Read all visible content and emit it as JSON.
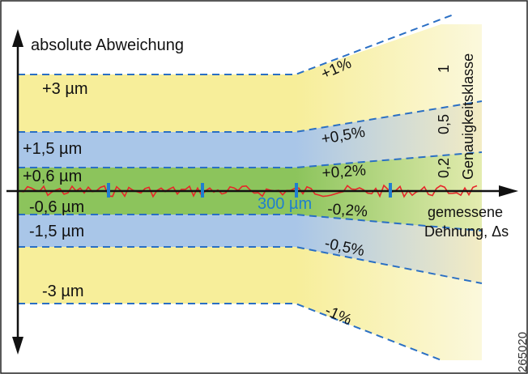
{
  "axes": {
    "y_label": "absolute Abweichung",
    "x_label_line1": "gemessene",
    "x_label_line2": "Dehnung, Δs",
    "tick_label": "300 µm"
  },
  "bands_left": [
    {
      "label": "+3 µm"
    },
    {
      "label": "+1,5 µm"
    },
    {
      "label": "+0,6 µm"
    },
    {
      "label": "-0,6 µm"
    },
    {
      "label": "-1,5 µm"
    },
    {
      "label": "-3 µm"
    }
  ],
  "bands_right": [
    {
      "label": "+1%"
    },
    {
      "label": "+0,5%"
    },
    {
      "label": "+0,2%"
    },
    {
      "label": "-0,2%"
    },
    {
      "label": "-0,5%"
    },
    {
      "label": "-1%"
    }
  ],
  "accuracy_class": {
    "title": "Genauigkeitsklasse",
    "values": [
      "1",
      "0,5",
      "0,2"
    ]
  },
  "figure_id": "265020",
  "colors": {
    "yellow": "#f7ee9a",
    "blue": "#a9c6e8",
    "green": "#8cc45c",
    "dashes": "#2a6fc4",
    "signal": "#e8262a",
    "ticks": "#1f7ed0",
    "axis": "#111111"
  }
}
